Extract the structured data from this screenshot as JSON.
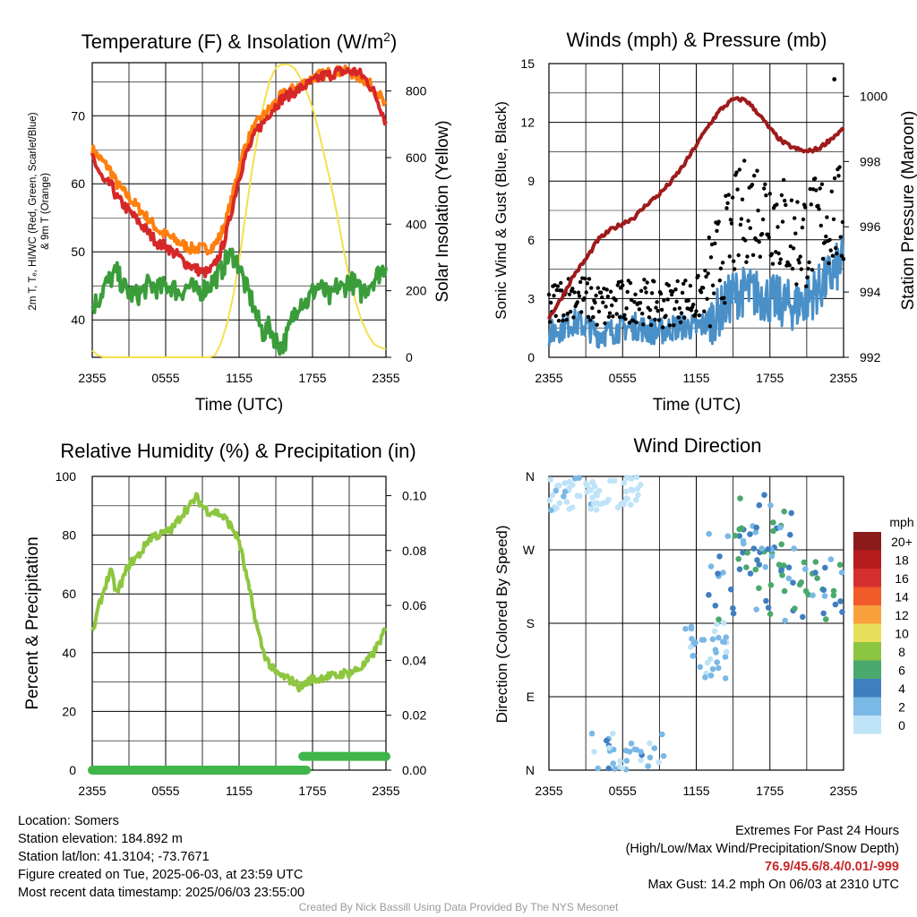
{
  "chart_data": [
    {
      "type": "line",
      "title_main": "Temperature (F) & Insolation (W/m",
      "title_sup": "2",
      "title_end": ")",
      "xlabel": "Time (UTC)",
      "ylabel_left_line1": "2m T, Tₑ, HI/WC (Red, Green, Scarlet/Blue)",
      "ylabel_left_line2": "& 9m T (Orange)",
      "ylabel_right": "Solar Insolation (Yellow)",
      "x_ticks": [
        "2355",
        "0555",
        "1155",
        "1755",
        "2355"
      ],
      "ylim": [
        34.5,
        77.8
      ],
      "y_ticks": [
        40,
        50,
        60,
        70
      ],
      "ylim_right": [
        0,
        885
      ],
      "y_ticks_right": [
        0,
        200,
        400,
        600,
        800
      ],
      "grid": true,
      "series": [
        {
          "color": "#d62728",
          "axis": "left",
          "x_hours": [
            0,
            0.5,
            1,
            1.5,
            2,
            2.5,
            3,
            3.5,
            4,
            4.5,
            5,
            5.5,
            6,
            6.5,
            7,
            7.5,
            8,
            8.5,
            9,
            9.5,
            10,
            10.5,
            11,
            11.5,
            12,
            12.5,
            13,
            13.5,
            14,
            14.5,
            15,
            15.5,
            16,
            16.5,
            17,
            17.5,
            18,
            18.5,
            19,
            19.5,
            20,
            20.5,
            21,
            21.5,
            22,
            22.5,
            23,
            23.5,
            24
          ],
          "values": [
            64,
            62,
            60,
            60,
            58,
            57,
            56,
            55,
            54,
            53,
            52,
            51,
            51,
            50,
            49.5,
            48.5,
            48,
            47.5,
            47,
            47,
            48,
            50,
            53,
            57,
            61,
            64,
            66,
            68,
            69,
            70.5,
            71.5,
            72.5,
            73,
            73.5,
            74,
            74.5,
            75,
            75.5,
            76,
            76,
            76.5,
            76.5,
            76.5,
            76.5,
            76,
            75,
            73.5,
            71.5,
            69
          ]
        },
        {
          "color": "#ff7f0e",
          "axis": "left",
          "x_hours": [
            0,
            0.5,
            1,
            1.5,
            2,
            2.5,
            3,
            3.5,
            4,
            4.5,
            5,
            5.5,
            6,
            6.5,
            7,
            7.5,
            8,
            8.5,
            9,
            9.5,
            10,
            10.5,
            11,
            11.5,
            12,
            12.5,
            13,
            13.5,
            14,
            14.5,
            15,
            15.5,
            16,
            16.5,
            17,
            17.5,
            18,
            18.5,
            19,
            19.5,
            20,
            20.5,
            21,
            21.5,
            22,
            22.5,
            23,
            23.5,
            24
          ],
          "values": [
            65,
            64,
            63,
            62,
            60,
            59,
            58,
            57,
            56,
            55,
            54,
            53,
            52.5,
            52,
            51.5,
            51,
            50.5,
            50.5,
            50.5,
            50.5,
            51,
            52.5,
            55,
            58.5,
            62.5,
            65.5,
            67.5,
            69,
            70,
            71,
            72,
            73,
            73.5,
            74,
            74.5,
            75,
            75.5,
            76,
            76,
            76.5,
            76.5,
            76.5,
            76.5,
            76,
            75.5,
            75,
            74,
            73,
            71
          ]
        },
        {
          "color": "#3a9d3a",
          "axis": "left",
          "x_hours": [
            0,
            0.5,
            1,
            1.5,
            2,
            2.5,
            3,
            3.5,
            4,
            4.5,
            5,
            5.5,
            6,
            6.5,
            7,
            7.5,
            8,
            8.5,
            9,
            9.5,
            10,
            10.5,
            11,
            11.5,
            12,
            12.5,
            13,
            13.5,
            14,
            14.5,
            15,
            15.5,
            16,
            16.5,
            17,
            17.5,
            18,
            18.5,
            19,
            19.5,
            20,
            20.5,
            21,
            21.5,
            22,
            22.5,
            23,
            23.5,
            24
          ],
          "values": [
            42,
            43,
            45,
            46,
            47,
            45,
            44,
            43.5,
            44,
            45,
            45,
            44.5,
            45,
            45,
            44,
            44.5,
            45,
            44,
            44.5,
            45,
            46,
            47,
            49,
            49.5,
            48,
            45,
            43,
            40,
            38,
            39,
            37,
            36,
            38,
            41,
            43,
            42.5,
            44,
            45,
            44,
            43,
            45,
            44.5,
            46,
            45,
            44,
            45,
            46,
            47,
            48
          ]
        },
        {
          "color": "#f4e04d",
          "axis": "right",
          "x_hours": [
            0,
            0.5,
            1,
            1.5,
            2,
            2.5,
            3,
            3.5,
            4,
            4.5,
            5,
            5.5,
            6,
            6.5,
            7,
            7.5,
            8,
            8.5,
            9,
            9.5,
            10,
            10.5,
            11,
            11.5,
            12,
            12.5,
            13,
            13.5,
            14,
            14.5,
            15,
            15.5,
            16,
            16.5,
            17,
            17.5,
            18,
            18.5,
            19,
            19.5,
            20,
            20.5,
            21,
            21.5,
            22,
            22.5,
            23,
            23.5,
            24
          ],
          "values": [
            20,
            5,
            0,
            0,
            0,
            0,
            0,
            0,
            0,
            0,
            0,
            0,
            0,
            0,
            0,
            0,
            0,
            0,
            0,
            0,
            5,
            40,
            100,
            180,
            290,
            420,
            550,
            660,
            760,
            830,
            870,
            880,
            880,
            870,
            840,
            800,
            750,
            680,
            600,
            520,
            430,
            330,
            240,
            170,
            110,
            70,
            40,
            30,
            25
          ]
        }
      ]
    },
    {
      "type": "scatter",
      "title": "Winds (mph) & Pressure (mb)",
      "xlabel": "Time (UTC)",
      "ylabel_left": "Sonic Wind & Gust (Blue, Black)",
      "ylabel_right": "Station Pressure (Maroon)",
      "x_ticks": [
        "2355",
        "0555",
        "1155",
        "1755",
        "2355"
      ],
      "ylim": [
        0,
        15
      ],
      "y_ticks": [
        0,
        3,
        6,
        9,
        12,
        15
      ],
      "ylim_right": [
        992,
        1001
      ],
      "y_ticks_right": [
        992,
        994,
        996,
        998,
        1000
      ],
      "grid": true,
      "wind_base": {
        "x_hours": [
          0,
          1,
          2,
          3,
          4,
          5,
          6,
          7,
          8,
          9,
          10,
          11,
          12,
          13,
          14,
          15,
          16,
          17,
          18,
          19,
          20,
          21,
          22,
          23,
          24
        ],
        "values": [
          1.2,
          1.5,
          1.8,
          1.6,
          1.2,
          1.3,
          1.5,
          1.6,
          1.4,
          1.3,
          1.5,
          1.6,
          1.5,
          1.8,
          2.4,
          3.2,
          3.4,
          3.2,
          3.0,
          2.8,
          2.6,
          3.0,
          3.5,
          4.2,
          5.0
        ]
      },
      "gust_base": {
        "x_hours": [
          0,
          1,
          2,
          3,
          4,
          5,
          6,
          7,
          8,
          9,
          10,
          11,
          12,
          13,
          14,
          15,
          16,
          17,
          18,
          19,
          20,
          21,
          22,
          23,
          24
        ],
        "values": [
          2.5,
          3.0,
          3.2,
          3.0,
          2.6,
          2.6,
          2.8,
          3.0,
          2.8,
          2.6,
          2.8,
          3.0,
          2.9,
          3.6,
          5.0,
          6.5,
          7.5,
          7.8,
          7.5,
          6.8,
          6.0,
          6.2,
          6.8,
          7.2,
          7.0
        ]
      },
      "max_gust": {
        "x_hour": 23.25,
        "value": 14.2
      },
      "pressure": {
        "color": "#9e1b1b",
        "x_hours": [
          0,
          1,
          2,
          3,
          4,
          5,
          6,
          7,
          8,
          9,
          10,
          11,
          12,
          13,
          14,
          15,
          16,
          17,
          18,
          19,
          20,
          21,
          22,
          23,
          24
        ],
        "values": [
          993.2,
          993.8,
          994.5,
          995.0,
          995.6,
          995.9,
          996.1,
          996.3,
          996.7,
          997.0,
          997.4,
          997.9,
          998.5,
          999.1,
          999.6,
          999.9,
          999.9,
          999.5,
          999.0,
          998.6,
          998.4,
          998.3,
          998.4,
          998.7,
          999.0
        ]
      }
    },
    {
      "type": "line",
      "title": "Relative Humidity (%) & Precipitation (in)",
      "ylabel_left": "Percent & Precipitation",
      "x_ticks": [
        "2355",
        "0555",
        "1155",
        "1755",
        "2355"
      ],
      "ylim": [
        0,
        100
      ],
      "y_ticks": [
        0,
        20,
        40,
        60,
        80,
        100
      ],
      "ylim_right": [
        0,
        0.107
      ],
      "y_ticks_right": [
        "0.00",
        "0.02",
        "0.04",
        "0.06",
        "0.08",
        "0.10"
      ],
      "grid": true,
      "series": [
        {
          "color": "#8dc63f",
          "axis": "left",
          "x_hours": [
            0,
            0.5,
            1,
            1.5,
            2,
            2.5,
            3,
            3.5,
            4,
            4.5,
            5,
            5.5,
            6,
            6.5,
            7,
            7.5,
            8,
            8.5,
            9,
            9.5,
            10,
            10.5,
            11,
            11.5,
            12,
            12.5,
            13,
            13.5,
            14,
            14.5,
            15,
            15.5,
            16,
            16.5,
            17,
            17.5,
            18,
            18.5,
            19,
            19.5,
            20,
            20.5,
            21,
            21.5,
            22,
            22.5,
            23,
            23.5,
            24
          ],
          "values": [
            46,
            55,
            62,
            68,
            60,
            65,
            70,
            72,
            74,
            78,
            80,
            80,
            81,
            82,
            85,
            88,
            90,
            93,
            90,
            88,
            88,
            87,
            85,
            82,
            78,
            68,
            58,
            48,
            40,
            36,
            33,
            32,
            31,
            30,
            28,
            30,
            31,
            31,
            32,
            32,
            32,
            33,
            33,
            34,
            35,
            37,
            40,
            44,
            48
          ]
        },
        {
          "color": "#3fb54a",
          "axis": "right",
          "x_hours": [
            0,
            17.5,
            17.5,
            24
          ],
          "values": [
            0,
            0,
            0.005,
            0.005
          ]
        }
      ]
    },
    {
      "type": "scatter",
      "title": "Wind Direction",
      "ylabel_left": "Direction (Colored By Speed)",
      "x_ticks": [
        "2355",
        "0555",
        "1155",
        "1755",
        "2355"
      ],
      "y_ticks": [
        "N",
        "E",
        "S",
        "W",
        "N"
      ],
      "ylim": [
        0,
        360
      ],
      "grid": true,
      "clusters": [
        {
          "x_hours": [
            0,
            4
          ],
          "deg": [
            315,
            360
          ],
          "speed": [
            0,
            3
          ]
        },
        {
          "x_hours": [
            3,
            7.5
          ],
          "deg": [
            320,
            360
          ],
          "speed": [
            0,
            2
          ]
        },
        {
          "x_hours": [
            3,
            9.5
          ],
          "deg": [
            0,
            45
          ],
          "speed": [
            1,
            5
          ]
        },
        {
          "x_hours": [
            11,
            14.5
          ],
          "deg": [
            110,
            185
          ],
          "speed": [
            1,
            4
          ]
        },
        {
          "x_hours": [
            13,
            19
          ],
          "deg": [
            180,
            300
          ],
          "speed": [
            2,
            7
          ]
        },
        {
          "x_hours": [
            15.5,
            20
          ],
          "deg": [
            240,
            340
          ],
          "speed": [
            3,
            8
          ]
        },
        {
          "x_hours": [
            19,
            24
          ],
          "deg": [
            180,
            260
          ],
          "speed": [
            3,
            8
          ]
        }
      ],
      "legend": {
        "title": "mph",
        "labels": [
          "20+",
          "18",
          "16",
          "14",
          "12",
          "10",
          "8",
          "6",
          "4",
          "2",
          "0"
        ],
        "colors": [
          "#8b1a1a",
          "#b71c1c",
          "#d32f2f",
          "#f15a29",
          "#f9a13d",
          "#e8e05a",
          "#8cc540",
          "#4aa96c",
          "#3f7fbf",
          "#7ab8e6",
          "#bfe3f7"
        ],
        "placement": "right"
      }
    }
  ],
  "footer_left": {
    "location": "Location: Somers",
    "elevation": "Station elevation: 184.892 m",
    "latlon": "Station lat/lon: 41.3104; -73.7671",
    "created": "Figure created on Tue, 2025-06-03, at 23:59 UTC",
    "recent": "Most recent data timestamp: 2025/06/03 23:55:00"
  },
  "footer_right": {
    "header": "Extremes For Past 24 Hours",
    "subheader": "(High/Low/Max Wind/Precipitation/Snow Depth)",
    "values": "76.9/45.6/8.4/0.01/-999",
    "gust": "Max Gust: 14.2 mph On 06/03 at 2310 UTC"
  },
  "credit": "Created By Nick Bassill Using Data Provided By The NYS Mesonet"
}
